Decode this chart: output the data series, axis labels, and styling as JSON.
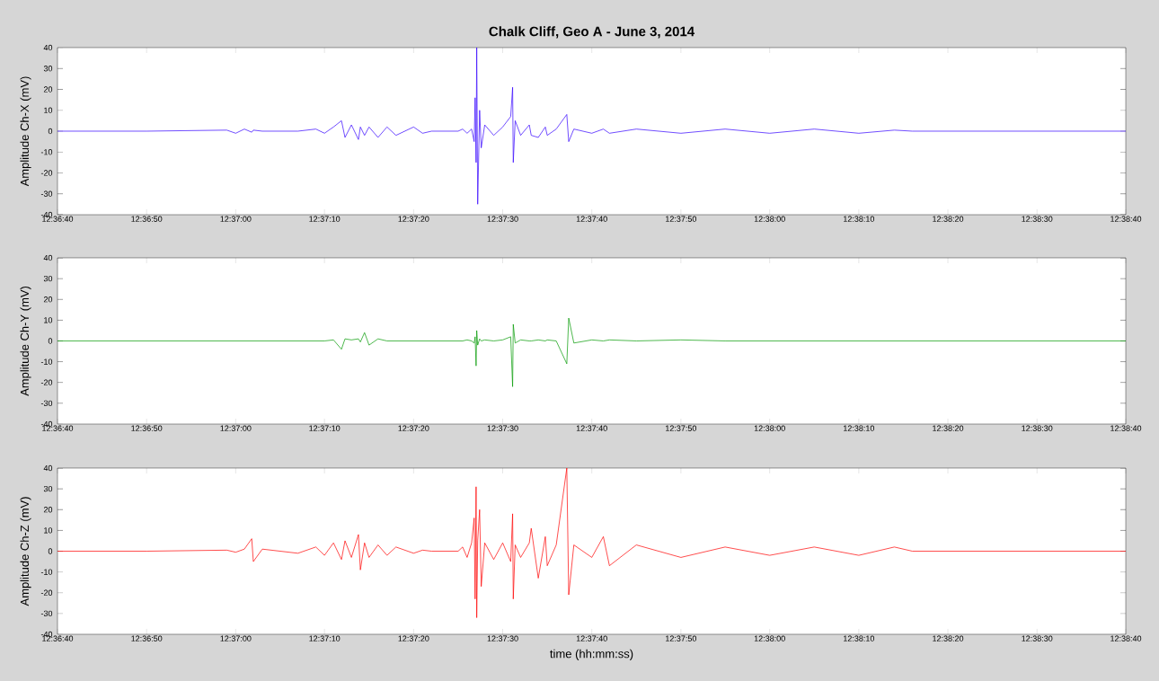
{
  "chart_data": [
    {
      "type": "line",
      "title": "Chalk Cliff, Geo A - June 3, 2014",
      "ylabel": "Amplitude Ch-X (mV)",
      "color": "#3300ff",
      "grid": false,
      "x": [
        12.61111,
        12.61389,
        12.61639,
        12.61667,
        12.61694,
        12.61717,
        12.61722,
        12.6175,
        12.61861,
        12.61917,
        12.61944,
        12.61972,
        12.61997,
        12.62008,
        12.62028,
        12.6205,
        12.62056,
        12.62069,
        12.62083,
        12.62111,
        12.62139,
        12.62167,
        12.62222,
        12.6225,
        12.62278,
        12.62361,
        12.62375,
        12.62389,
        12.62403,
        12.62411,
        12.62414,
        12.62417,
        12.62419,
        12.62422,
        12.62428,
        12.62433,
        12.62444,
        12.62472,
        12.625,
        12.62525,
        12.62531,
        12.62533,
        12.62539,
        12.62556,
        12.62583,
        12.62589,
        12.62611,
        12.62633,
        12.62639,
        12.62667,
        12.627,
        12.62706,
        12.62722,
        12.62778,
        12.62814,
        12.62833,
        12.62917,
        12.63056,
        12.63194,
        12.63333,
        12.63472,
        12.63611,
        12.63722,
        12.63778,
        12.64444
      ],
      "values": [
        0,
        0,
        0.5,
        -1,
        1,
        -0.5,
        0.5,
        0,
        0,
        1,
        -1,
        2,
        5,
        -3,
        3,
        -4,
        2,
        -2,
        2,
        -3,
        2,
        -2,
        2,
        -1,
        0,
        0,
        1,
        -1,
        1,
        -5,
        16,
        -15,
        40,
        -35,
        10,
        -8,
        3,
        -2,
        2,
        7,
        21,
        -15,
        5,
        -2,
        3,
        -2,
        -3,
        2,
        -2,
        1,
        8,
        -5,
        1,
        -1,
        1,
        -1,
        1,
        -1,
        1,
        -1,
        1,
        -1,
        0.5,
        0,
        0
      ],
      "xlim": [
        12.61111,
        12.64444
      ],
      "xticks": [
        {
          "value": 12.61111,
          "label": "12:36:40"
        },
        {
          "value": 12.61389,
          "label": "12:36:50"
        },
        {
          "value": 12.61667,
          "label": "12:37:00"
        },
        {
          "value": 12.61944,
          "label": "12:37:10"
        },
        {
          "value": 12.62222,
          "label": "12:37:20"
        },
        {
          "value": 12.625,
          "label": "12:37:30"
        },
        {
          "value": 12.62778,
          "label": "12:37:40"
        },
        {
          "value": 12.63056,
          "label": "12:37:50"
        },
        {
          "value": 12.63333,
          "label": "12:38:00"
        },
        {
          "value": 12.63611,
          "label": "12:38:10"
        },
        {
          "value": 12.63889,
          "label": "12:38:20"
        },
        {
          "value": 12.64167,
          "label": "12:38:30"
        },
        {
          "value": 12.64444,
          "label": "12:38:40"
        }
      ],
      "ylim": [
        -40,
        40
      ],
      "yticks": [
        -40,
        -30,
        -20,
        -10,
        0,
        10,
        20,
        30,
        40
      ]
    },
    {
      "type": "line",
      "ylabel": "Amplitude Ch-Y (mV)",
      "color": "#009900",
      "grid": false,
      "x": [
        12.61111,
        12.61389,
        12.61639,
        12.61667,
        12.61694,
        12.61717,
        12.61722,
        12.6175,
        12.61861,
        12.61917,
        12.61944,
        12.61972,
        12.61997,
        12.62008,
        12.62028,
        12.6205,
        12.62056,
        12.62069,
        12.62083,
        12.62111,
        12.62139,
        12.62167,
        12.62222,
        12.6225,
        12.62278,
        12.62361,
        12.62375,
        12.62389,
        12.62403,
        12.62411,
        12.62414,
        12.62417,
        12.62419,
        12.62422,
        12.62428,
        12.62433,
        12.62444,
        12.62472,
        12.625,
        12.62525,
        12.62531,
        12.62533,
        12.62539,
        12.62556,
        12.62583,
        12.62589,
        12.62611,
        12.62633,
        12.62639,
        12.62667,
        12.627,
        12.62706,
        12.62722,
        12.62778,
        12.62814,
        12.62833,
        12.62917,
        12.63056,
        12.63194,
        12.63333,
        12.63472,
        12.63611,
        12.63722,
        12.63778,
        12.64444
      ],
      "values": [
        0,
        0,
        0,
        0,
        0,
        0,
        0,
        0,
        0,
        0,
        0,
        0.5,
        -4,
        1,
        0.5,
        1,
        -0.5,
        4,
        -2,
        1,
        0,
        0,
        0,
        0,
        0,
        0,
        0,
        0.5,
        0,
        -1,
        2,
        -12,
        5,
        -2,
        1,
        0,
        0.5,
        0,
        0.5,
        2,
        -22,
        8,
        -1,
        0.5,
        0,
        0,
        0.5,
        0,
        0.5,
        0,
        -11,
        11,
        -1,
        0.5,
        0,
        0.5,
        0,
        0.5,
        0,
        0,
        0,
        0,
        0,
        0,
        0
      ],
      "xlim": [
        12.61111,
        12.64444
      ],
      "xticks": [
        {
          "value": 12.61111,
          "label": "12:36:40"
        },
        {
          "value": 12.61389,
          "label": "12:36:50"
        },
        {
          "value": 12.61667,
          "label": "12:37:00"
        },
        {
          "value": 12.61944,
          "label": "12:37:10"
        },
        {
          "value": 12.62222,
          "label": "12:37:20"
        },
        {
          "value": 12.625,
          "label": "12:37:30"
        },
        {
          "value": 12.62778,
          "label": "12:37:40"
        },
        {
          "value": 12.63056,
          "label": "12:37:50"
        },
        {
          "value": 12.63333,
          "label": "12:38:00"
        },
        {
          "value": 12.63611,
          "label": "12:38:10"
        },
        {
          "value": 12.63889,
          "label": "12:38:20"
        },
        {
          "value": 12.64167,
          "label": "12:38:30"
        },
        {
          "value": 12.64444,
          "label": "12:38:40"
        }
      ],
      "ylim": [
        -40,
        40
      ],
      "yticks": [
        -40,
        -30,
        -20,
        -10,
        0,
        10,
        20,
        30,
        40
      ]
    },
    {
      "type": "line",
      "xlabel": "time (hh:mm:ss)",
      "ylabel": "Amplitude Ch-Z (mV)",
      "color": "#ff0000",
      "grid": false,
      "x": [
        12.61111,
        12.61389,
        12.61639,
        12.61667,
        12.61694,
        12.61717,
        12.61722,
        12.6175,
        12.61861,
        12.61917,
        12.61944,
        12.61972,
        12.61997,
        12.62008,
        12.62028,
        12.6205,
        12.62056,
        12.62069,
        12.62083,
        12.62111,
        12.62139,
        12.62167,
        12.62222,
        12.6225,
        12.62278,
        12.62361,
        12.62375,
        12.62389,
        12.62403,
        12.62411,
        12.62414,
        12.62417,
        12.62419,
        12.62422,
        12.62428,
        12.62433,
        12.62444,
        12.62472,
        12.625,
        12.62525,
        12.62531,
        12.62533,
        12.62539,
        12.62556,
        12.62583,
        12.62589,
        12.62611,
        12.62633,
        12.62639,
        12.62667,
        12.627,
        12.62706,
        12.62722,
        12.62778,
        12.62814,
        12.62833,
        12.62917,
        12.63056,
        12.63194,
        12.63333,
        12.63472,
        12.63611,
        12.63722,
        12.63778,
        12.64444
      ],
      "values": [
        0,
        0,
        0.5,
        -0.5,
        1,
        6,
        -5,
        1,
        -1,
        2,
        -2,
        4,
        -4,
        5,
        -3,
        8,
        -9,
        4,
        -3,
        3,
        -2,
        2,
        -1,
        0.5,
        0,
        0,
        2,
        -3,
        4,
        16,
        -23,
        31,
        -32,
        5,
        20,
        -17,
        4,
        -4,
        4,
        -5,
        18,
        -23,
        3,
        -3,
        4,
        11,
        -13,
        7,
        -7,
        3,
        40,
        -21,
        3,
        -3,
        7,
        -7,
        3,
        -3,
        2,
        -2,
        2,
        -2,
        2,
        0,
        0
      ],
      "xlim": [
        12.61111,
        12.64444
      ],
      "xticks": [
        {
          "value": 12.61111,
          "label": "12:36:40"
        },
        {
          "value": 12.61389,
          "label": "12:36:50"
        },
        {
          "value": 12.61667,
          "label": "12:37:00"
        },
        {
          "value": 12.61944,
          "label": "12:37:10"
        },
        {
          "value": 12.62222,
          "label": "12:37:20"
        },
        {
          "value": 12.625,
          "label": "12:37:30"
        },
        {
          "value": 12.62778,
          "label": "12:37:40"
        },
        {
          "value": 12.63056,
          "label": "12:37:50"
        },
        {
          "value": 12.63333,
          "label": "12:38:00"
        },
        {
          "value": 12.63611,
          "label": "12:38:10"
        },
        {
          "value": 12.63889,
          "label": "12:38:20"
        },
        {
          "value": 12.64167,
          "label": "12:38:30"
        },
        {
          "value": 12.64444,
          "label": "12:38:40"
        }
      ],
      "ylim": [
        -40,
        40
      ],
      "yticks": [
        -40,
        -30,
        -20,
        -10,
        0,
        10,
        20,
        30,
        40
      ]
    }
  ]
}
